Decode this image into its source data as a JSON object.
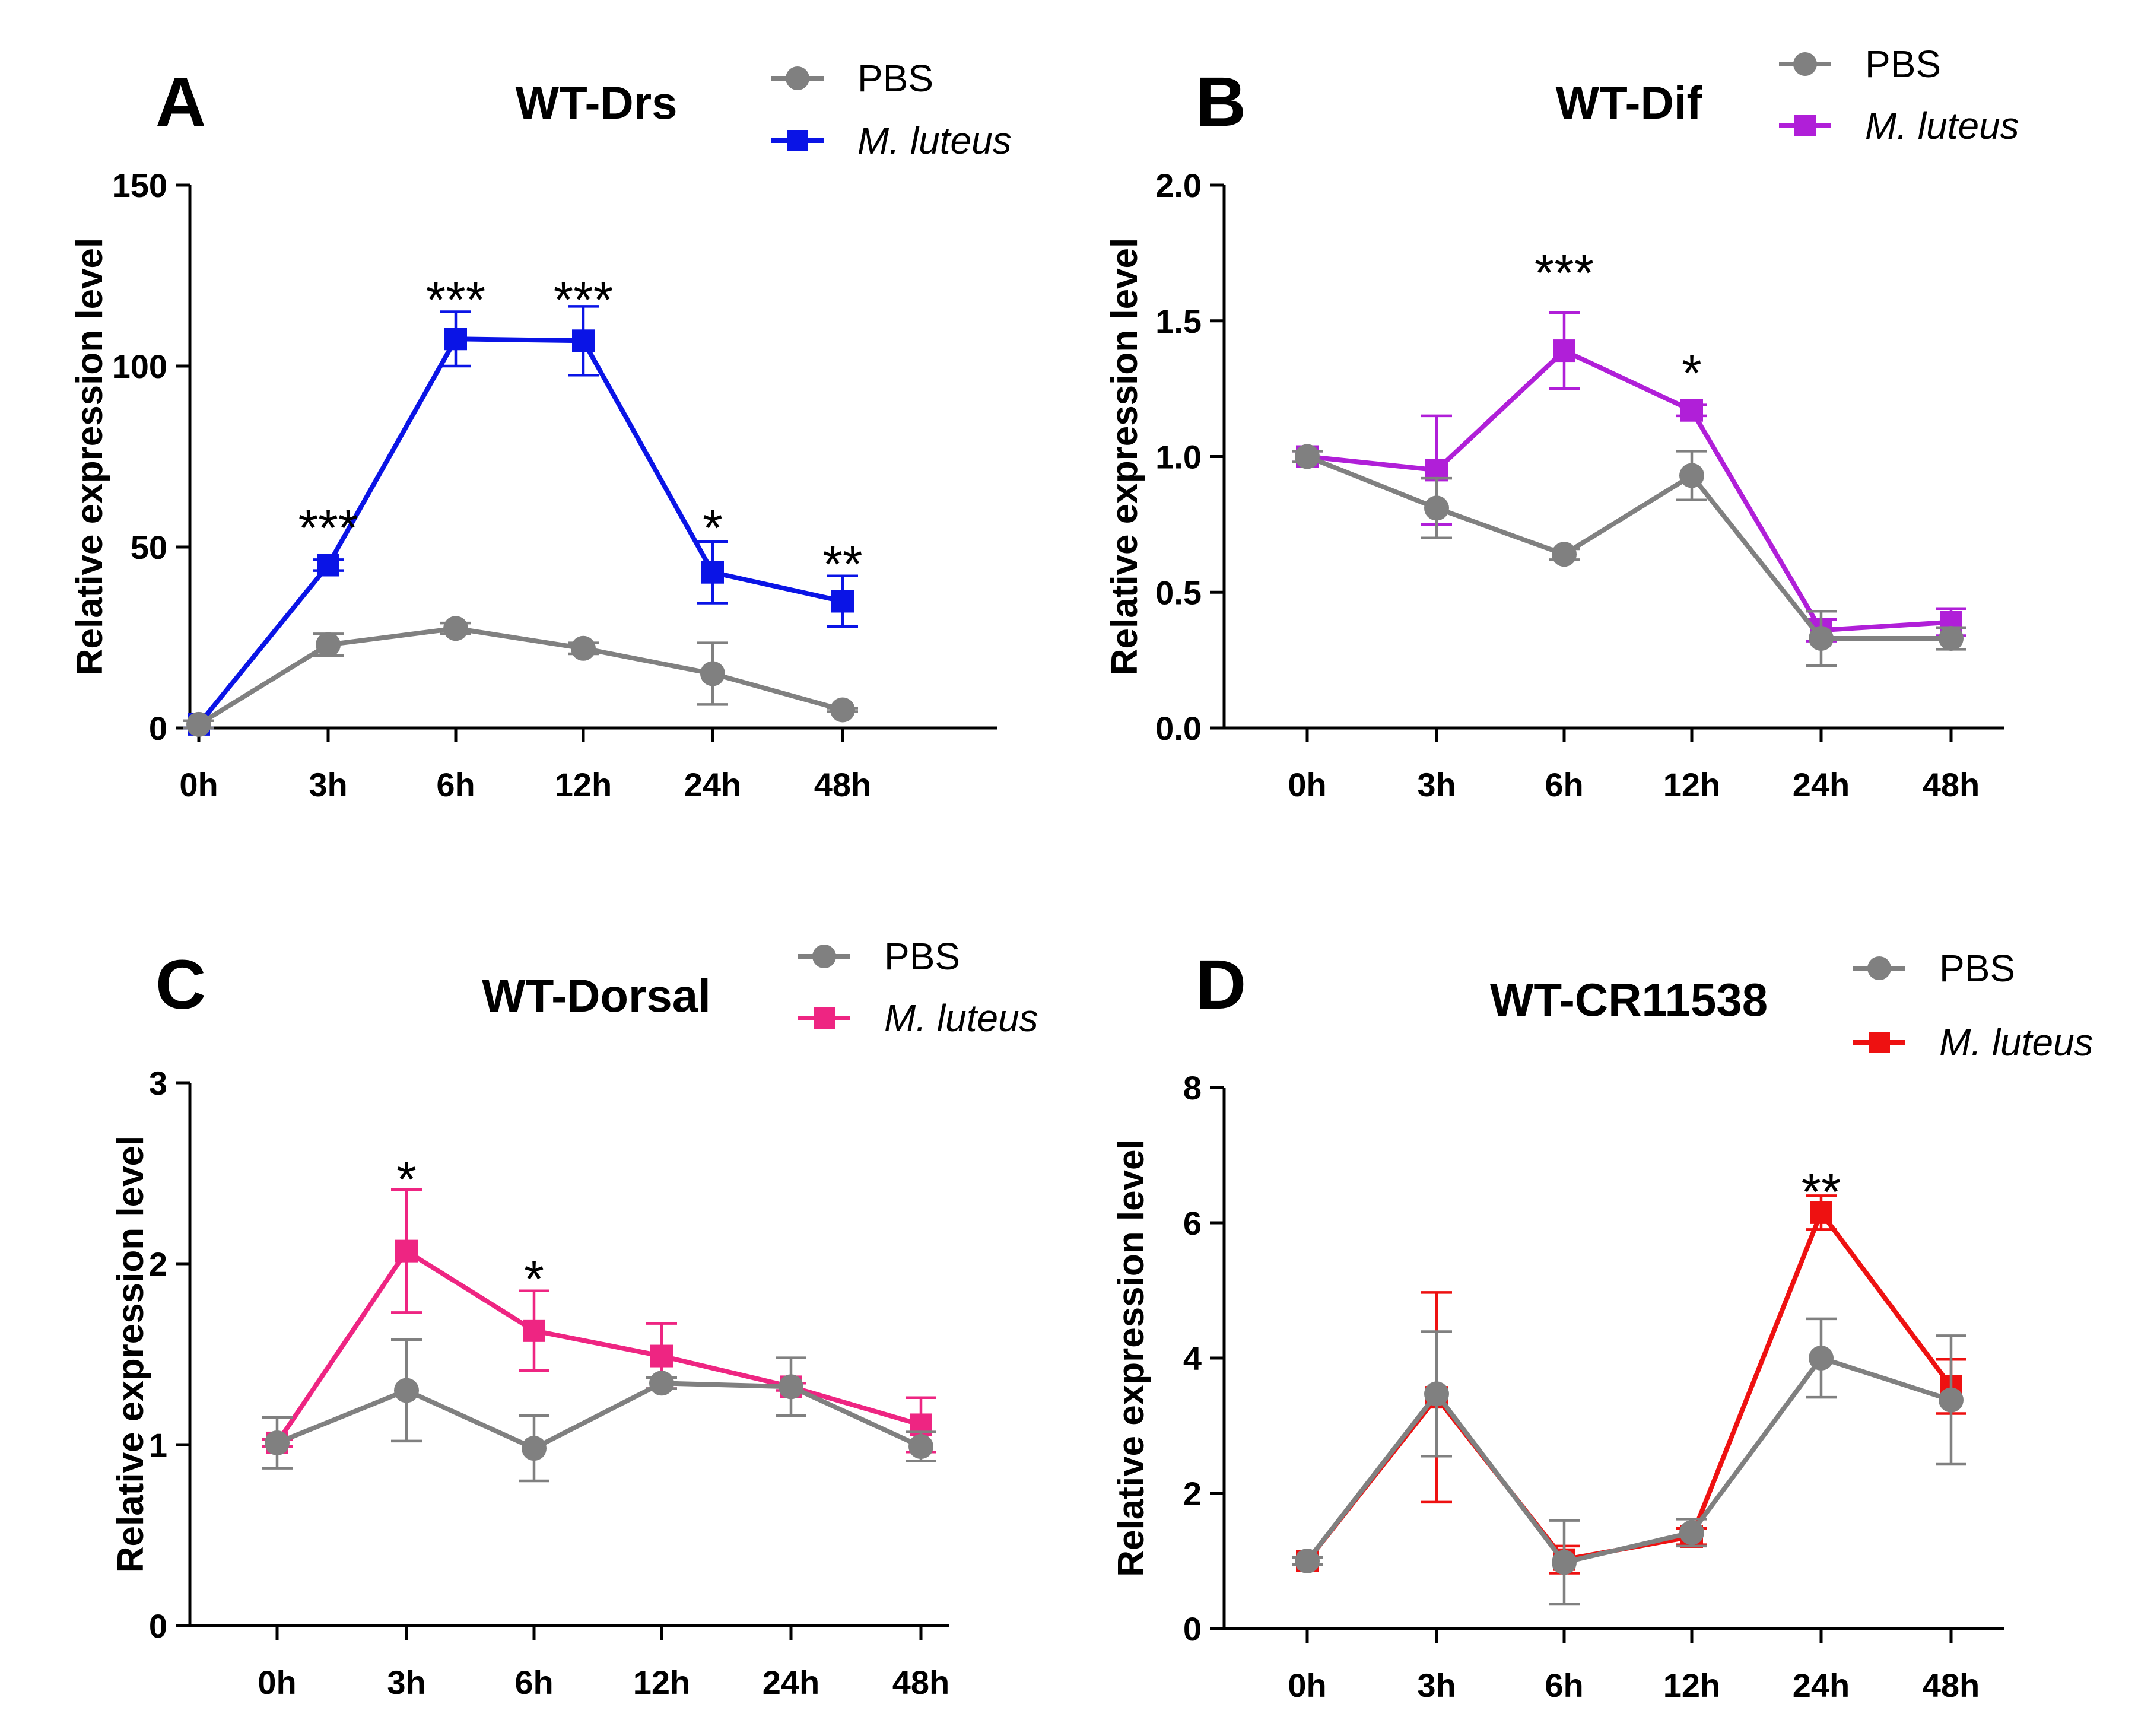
{
  "colors": {
    "pbs": "#808080",
    "axis": "#000000",
    "mluteus_drs": "#0a14e6",
    "mluteus_dif": "#b01fd8",
    "mluteus_dorsal": "#ee2582",
    "mluteus_cr": "#ee1111"
  },
  "chart_data": [
    {
      "type": "line",
      "panel": "A",
      "title": "WT-Drs",
      "xlabel": "",
      "ylabel": "Relative expression level",
      "categories": [
        "0h",
        "3h",
        "6h",
        "12h",
        "24h",
        "48h"
      ],
      "ylim": [
        0,
        150
      ],
      "yticks": [
        0,
        50,
        100,
        150
      ],
      "yticklabels": [
        "0",
        "50",
        "100",
        "150"
      ],
      "legend": [
        "PBS",
        "M. luteus"
      ],
      "series": [
        {
          "name": "PBS",
          "marker": "circle",
          "color": "#808080",
          "values": [
            1,
            23,
            27.5,
            22,
            15,
            5
          ],
          "errors": [
            1,
            3,
            1.5,
            1.5,
            8.5,
            0.5
          ]
        },
        {
          "name": "M. luteus",
          "marker": "square",
          "color": "#0a14e6",
          "values": [
            1,
            45,
            107.5,
            107,
            43,
            35
          ],
          "errors": [
            1,
            1.5,
            7.5,
            9.5,
            8.5,
            7
          ]
        }
      ],
      "significance": [
        {
          "category": "3h",
          "label": "***",
          "y": 57
        },
        {
          "category": "6h",
          "label": "***",
          "y": 120
        },
        {
          "category": "12h",
          "label": "***",
          "y": 120
        },
        {
          "category": "24h",
          "label": "*",
          "y": 57
        },
        {
          "category": "48h",
          "label": "**",
          "y": 47
        }
      ]
    },
    {
      "type": "line",
      "panel": "B",
      "title": "WT-Dif",
      "xlabel": "",
      "ylabel": "Relative expression level",
      "categories": [
        "0h",
        "3h",
        "6h",
        "12h",
        "24h",
        "48h"
      ],
      "ylim": [
        0,
        2.0
      ],
      "yticks": [
        0,
        0.5,
        1.0,
        1.5,
        2.0
      ],
      "yticklabels": [
        "0.0",
        "0.5",
        "1.0",
        "1.5",
        "2.0"
      ],
      "legend": [
        "PBS",
        "M. luteus"
      ],
      "series": [
        {
          "name": "PBS",
          "marker": "circle",
          "color": "#808080",
          "values": [
            1.0,
            0.81,
            0.64,
            0.93,
            0.33,
            0.33
          ],
          "errors": [
            0.02,
            0.11,
            0.02,
            0.09,
            0.1,
            0.04
          ]
        },
        {
          "name": "M. luteus",
          "marker": "square",
          "color": "#b01fd8",
          "values": [
            1.0,
            0.95,
            1.39,
            1.17,
            0.36,
            0.39
          ],
          "errors": [
            0.02,
            0.2,
            0.14,
            0.02,
            0.04,
            0.05
          ]
        }
      ],
      "significance": [
        {
          "category": "6h",
          "label": "***",
          "y": 1.7
        },
        {
          "category": "12h",
          "label": "*",
          "y": 1.33
        }
      ]
    },
    {
      "type": "line",
      "panel": "C",
      "title": "WT-Dorsal",
      "xlabel": "",
      "ylabel": "Relative expression level",
      "categories": [
        "0h",
        "3h",
        "6h",
        "12h",
        "24h",
        "48h"
      ],
      "ylim": [
        0,
        3
      ],
      "yticks": [
        0,
        1,
        2,
        3
      ],
      "yticklabels": [
        "0",
        "1",
        "2",
        "3"
      ],
      "legend": [
        "PBS",
        "M. luteus"
      ],
      "series": [
        {
          "name": "PBS",
          "marker": "circle",
          "color": "#808080",
          "values": [
            1.01,
            1.3,
            0.98,
            1.34,
            1.32,
            0.99
          ],
          "errors": [
            0.14,
            0.28,
            0.18,
            0.03,
            0.16,
            0.08
          ]
        },
        {
          "name": "M. luteus",
          "marker": "square",
          "color": "#ee2582",
          "values": [
            1.01,
            2.07,
            1.63,
            1.49,
            1.32,
            1.11
          ],
          "errors": [
            0.02,
            0.34,
            0.22,
            0.18,
            0.02,
            0.15
          ]
        }
      ],
      "significance": [
        {
          "category": "3h",
          "label": "*",
          "y": 2.5
        },
        {
          "category": "6h",
          "label": "*",
          "y": 1.95
        }
      ]
    },
    {
      "type": "line",
      "panel": "D",
      "title": "WT-CR11538",
      "xlabel": "",
      "ylabel": "Relative expression level",
      "categories": [
        "0h",
        "3h",
        "6h",
        "12h",
        "24h",
        "48h"
      ],
      "ylim": [
        0,
        8
      ],
      "yticks": [
        0,
        2,
        4,
        6,
        8
      ],
      "yticklabels": [
        "0",
        "2",
        "4",
        "6",
        "8"
      ],
      "legend": [
        "PBS",
        "M. luteus"
      ],
      "series": [
        {
          "name": "PBS",
          "marker": "circle",
          "color": "#808080",
          "values": [
            1.0,
            3.47,
            0.98,
            1.42,
            4.0,
            3.38
          ],
          "errors": [
            0.05,
            0.92,
            0.62,
            0.2,
            0.58,
            0.95
          ]
        },
        {
          "name": "M. luteus",
          "marker": "square",
          "color": "#ee1111",
          "values": [
            1.0,
            3.42,
            1.02,
            1.36,
            6.15,
            3.58
          ],
          "errors": [
            0.05,
            1.55,
            0.2,
            0.12,
            0.25,
            0.4
          ]
        }
      ],
      "significance": [
        {
          "category": "24h",
          "label": "**",
          "y": 6.55
        }
      ]
    }
  ]
}
